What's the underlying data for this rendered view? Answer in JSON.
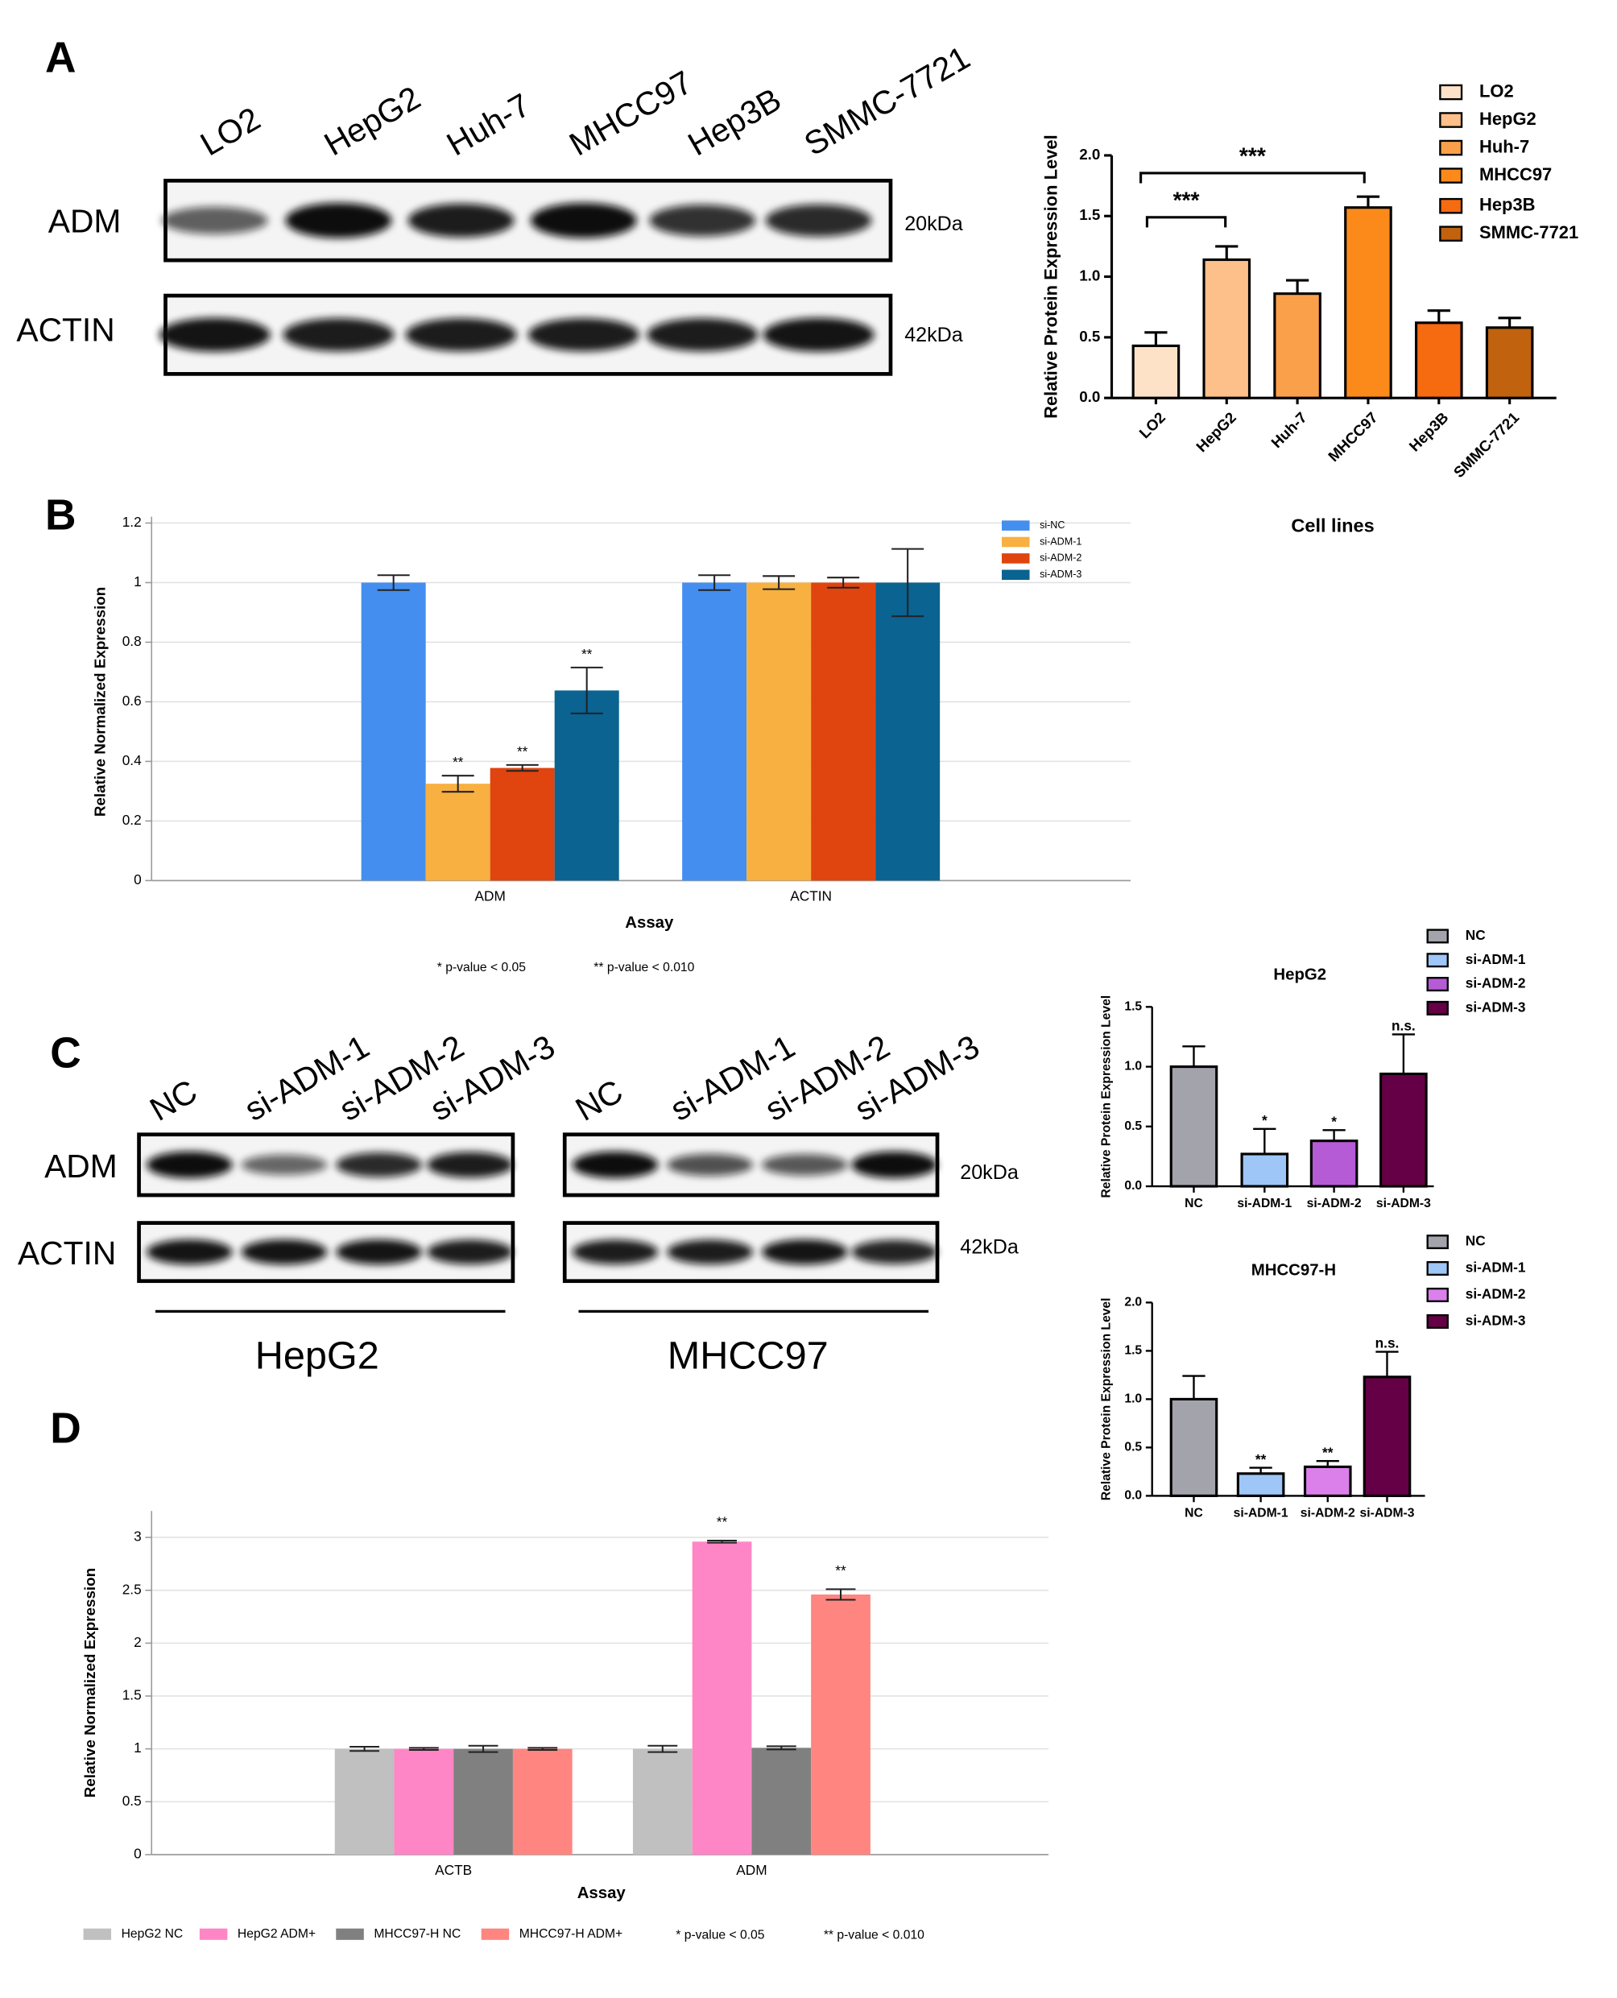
{
  "panels": [
    "A",
    "B",
    "C",
    "D"
  ],
  "blot_a": {
    "lanes": [
      "LO2",
      "HepG2",
      "Huh-7",
      "MHCC97",
      "Hep3B",
      "SMMC-7721"
    ],
    "rows": [
      "ADM",
      "ACTIN"
    ],
    "sizes": [
      "20kDa",
      "42kDa"
    ]
  },
  "blot_c": {
    "lanes": [
      "NC",
      "si-ADM-1",
      "si-ADM-2",
      "si-ADM-3",
      "NC",
      "si-ADM-1",
      "si-ADM-2",
      "si-ADM-3"
    ],
    "rows": [
      "ADM",
      "ACTIN"
    ],
    "sizes": [
      "20kDa",
      "42kDa"
    ],
    "groups": [
      "HepG2",
      "MHCC97"
    ]
  },
  "chart_data": [
    {
      "type": "bar",
      "ylabel": "Relative Protein Expression Level",
      "xlabel": "Cell lines",
      "categories": [
        "LO2",
        "HepG2",
        "Huh-7",
        "MHCC97",
        "Hep3B",
        "SMMC-7721"
      ],
      "values": [
        0.43,
        1.14,
        0.86,
        1.57,
        0.62,
        0.58
      ],
      "errors": [
        0.11,
        0.11,
        0.11,
        0.09,
        0.1,
        0.08
      ],
      "colors": [
        "#fde2c8",
        "#fdc08a",
        "#fba04a",
        "#fb8a1a",
        "#f66a10",
        "#c0620e"
      ],
      "annotations": [
        "***",
        "***"
      ],
      "ylim": [
        0,
        2
      ],
      "yticks": [
        {
          "value": 0,
          "label": "0.0"
        },
        0.5,
        {
          "value": 1,
          "label": "1.0"
        },
        1.5,
        {
          "value": 2,
          "label": "2.0"
        }
      ],
      "grid": false
    },
    {
      "type": "grouped-bar",
      "ylabel": "Relative Normalized Expression",
      "xlabel": "Assay",
      "categories": [
        "ADM",
        "ACTIN"
      ],
      "series": [
        {
          "name": "si-NC",
          "color": "#448ef0",
          "values": [
            1,
            1
          ],
          "errors": [
            0.025,
            0.025
          ],
          "significance": [
            null,
            null
          ]
        },
        {
          "name": "si-ADM-1",
          "color": "#f8b040",
          "values": [
            0.325,
            1
          ],
          "errors": [
            0.027,
            0.022
          ],
          "significance": [
            "**",
            null
          ]
        },
        {
          "name": "si-ADM-2",
          "color": "#e0440f",
          "values": [
            0.378,
            1
          ],
          "errors": [
            0.01,
            0.017
          ],
          "significance": [
            "**",
            null
          ]
        },
        {
          "name": "si-ADM-3",
          "color": "#0a6391",
          "values": [
            0.638,
            1
          ],
          "errors": [
            0.077,
            0.113
          ],
          "significance": [
            "**",
            null
          ]
        }
      ],
      "notes": [
        "* p-value < 0.05",
        "** p-value < 0.010"
      ],
      "ylim": [
        0,
        1.2
      ],
      "yticks": [
        0,
        0.2,
        0.4,
        0.6,
        0.8,
        1,
        1.2
      ],
      "grid": true
    },
    {
      "type": "bar",
      "title": "HepG2",
      "ylabel": "Relative Protein Expression Level",
      "categories": [
        "NC",
        "si-ADM-1",
        "si-ADM-2",
        "si-ADM-3"
      ],
      "values": [
        1,
        0.27,
        0.38,
        0.94
      ],
      "errors": [
        0.17,
        0.21,
        0.09,
        0.33
      ],
      "significance": [
        null,
        "*",
        "*",
        "n.s."
      ],
      "colors": [
        "#a3a3ab",
        "#9ec6f6",
        "#b65bd6",
        "#660046"
      ],
      "ylim": [
        0,
        1.5
      ],
      "yticks": [
        {
          "value": 0,
          "label": "0.0"
        },
        0.5,
        {
          "value": 1,
          "label": "1.0"
        },
        1.5
      ],
      "grid": false
    },
    {
      "type": "bar",
      "title": "MHCC97-H",
      "ylabel": "Relative Protein Expression Level",
      "categories": [
        "NC",
        "si-ADM-1",
        "si-ADM-2",
        "si-ADM-3"
      ],
      "values": [
        1,
        0.23,
        0.3,
        1.23
      ],
      "errors": [
        0.24,
        0.06,
        0.06,
        0.26
      ],
      "significance": [
        null,
        "**",
        "**",
        "n.s."
      ],
      "colors": [
        "#a3a3ab",
        "#9ec6f6",
        "#db80ea",
        "#660046"
      ],
      "ylim": [
        0,
        2
      ],
      "yticks": [
        {
          "value": 0,
          "label": "0.0"
        },
        0.5,
        {
          "value": 1,
          "label": "1.0"
        },
        1.5,
        {
          "value": 2,
          "label": "2.0"
        }
      ],
      "grid": false
    },
    {
      "type": "grouped-bar",
      "ylabel": "Relative Normalized Expression",
      "xlabel": "Assay",
      "categories": [
        "ACTB",
        "ADM"
      ],
      "series": [
        {
          "name": "HepG2 NC",
          "color": "#c0c0c0",
          "values": [
            1,
            1
          ],
          "errors": [
            0.02,
            0.03
          ],
          "significance": [
            null,
            null
          ]
        },
        {
          "name": "HepG2 ADM+",
          "color": "#ff86c6",
          "values": [
            1,
            2.96
          ],
          "errors": [
            0.01,
            0.01
          ],
          "significance": [
            null,
            "**"
          ]
        },
        {
          "name": "MHCC97-H NC",
          "color": "#808080",
          "values": [
            1,
            1.01
          ],
          "errors": [
            0.03,
            0.015
          ],
          "significance": [
            null,
            null
          ]
        },
        {
          "name": "MHCC97-H ADM+",
          "color": "#ff8580",
          "values": [
            1,
            2.46
          ],
          "errors": [
            0.01,
            0.05
          ],
          "significance": [
            null,
            "**"
          ]
        }
      ],
      "notes": [
        "* p-value < 0.05",
        "** p-value < 0.010"
      ],
      "ylim": [
        0,
        3.25
      ],
      "yticks": [
        0,
        0.5,
        1,
        1.5,
        2,
        2.5,
        3
      ],
      "grid": true
    }
  ]
}
